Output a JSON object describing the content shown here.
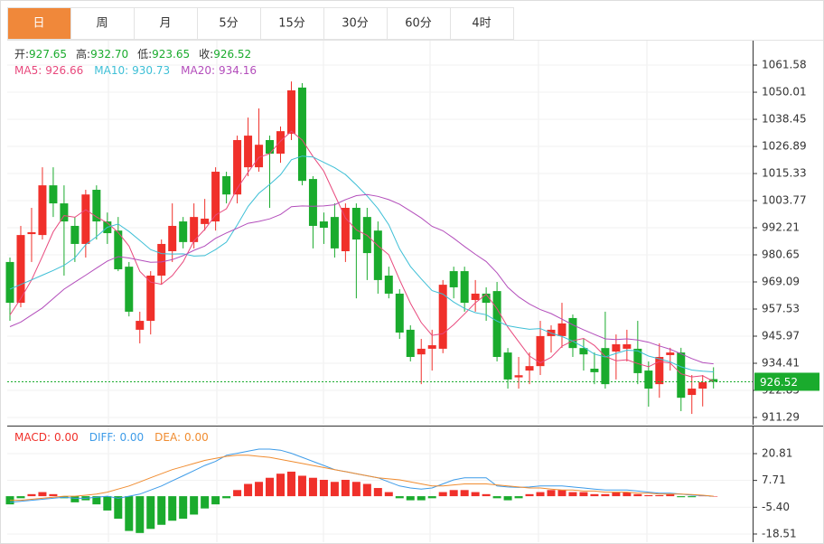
{
  "tabs": [
    "日",
    "周",
    "月",
    "5分",
    "15分",
    "30分",
    "60分",
    "4时"
  ],
  "active_tab": 0,
  "chart_data": [
    {
      "type": "candlestick",
      "info": [
        {
          "label": "开:",
          "value": "927.65"
        },
        {
          "label": "高:",
          "value": "932.70"
        },
        {
          "label": "低:",
          "value": "923.65"
        },
        {
          "label": "收:",
          "value": "926.52"
        }
      ],
      "up_color": "#f0302a",
      "down_color": "#1aab2d",
      "open": [
        977.6,
        960.2,
        989.5,
        989.1,
        1010.3,
        1002.6,
        993,
        985.3,
        1008.4,
        994.9,
        991,
        975.6,
        948.7,
        952.5,
        971.8,
        982.2,
        994.9,
        986.1,
        993.8,
        994.9,
        1014.2,
        1006.4,
        1018,
        1018,
        1029.6,
        1023.8,
        1032.3,
        1052,
        1013,
        994.9,
        996.8,
        982.2,
        1000.7,
        996.8,
        991,
        971.8,
        964.1,
        948.7,
        938.2,
        940.6,
        940.6,
        973.7,
        973.7,
        961.4,
        964.1,
        965.2,
        939,
        928.4,
        931.3,
        933.2,
        946,
        946,
        953.7,
        940.9,
        932.1,
        940.9,
        939.4,
        940.6,
        940.6,
        931.3,
        925.5,
        937.9,
        939,
        920.9,
        923.6,
        927.65
      ],
      "high": [
        979.5,
        993,
        1000.7,
        1018,
        1018,
        1010.3,
        996.8,
        1008.4,
        1010.3,
        998.7,
        996.8,
        977.6,
        956.4,
        973.7,
        987.2,
        1002.6,
        996.8,
        1002.6,
        1004.5,
        1018,
        1016.1,
        1031.5,
        1039.2,
        1043.1,
        1031.5,
        1035.4,
        1054.6,
        1053.9,
        1014.2,
        998.7,
        1002.6,
        1002.6,
        1002.6,
        1000.7,
        994.9,
        975.6,
        966,
        950.6,
        944.8,
        948.7,
        969.9,
        975.6,
        975.6,
        969.9,
        966.8,
        969.1,
        940.9,
        937.1,
        939,
        952.5,
        950.6,
        960.2,
        955.2,
        944.8,
        939,
        956.4,
        946.7,
        948.7,
        952.5,
        935.2,
        942.9,
        941,
        941,
        929.4,
        929.4,
        932.7
      ],
      "low": [
        952.5,
        958.3,
        977.6,
        987.2,
        996.8,
        971.8,
        977.6,
        979.5,
        987.2,
        985.3,
        973.7,
        954.4,
        942.9,
        946.7,
        967.9,
        977.6,
        983.4,
        983.4,
        991,
        991,
        1002.6,
        1002.6,
        1014.2,
        1016.1,
        1000.7,
        1019.9,
        1029.6,
        1010.3,
        983.4,
        985.3,
        979.5,
        977.6,
        962.1,
        969.9,
        964.1,
        962.1,
        944.8,
        935.2,
        925.5,
        931.3,
        938.7,
        962.1,
        956.4,
        956.4,
        952.5,
        935.2,
        923.6,
        923.6,
        925.5,
        929.4,
        939,
        941,
        937.1,
        931.3,
        925.5,
        923.6,
        927.5,
        935.2,
        925.5,
        915.9,
        919.7,
        931.3,
        914,
        912.8,
        916,
        923.65
      ],
      "close": [
        960.2,
        989.1,
        990.3,
        1010.3,
        1002.6,
        994.9,
        985.3,
        1006.4,
        994.9,
        989.9,
        974.5,
        956.4,
        952.5,
        971.8,
        985.3,
        993,
        986.1,
        996.8,
        996.1,
        1016.1,
        1006.4,
        1029.6,
        1031.5,
        1027.6,
        1023.8,
        1033.4,
        1050.8,
        1012.2,
        993,
        992.2,
        983.4,
        1000.7,
        987.2,
        981.4,
        969.9,
        964.1,
        947.5,
        937.1,
        940.6,
        942.1,
        967.9,
        966.8,
        960.2,
        964.1,
        960.2,
        937.1,
        927.5,
        929.3,
        933.2,
        946,
        948.7,
        951.4,
        940.9,
        938.2,
        930.6,
        925.5,
        942.5,
        942.5,
        930.2,
        923.6,
        937.1,
        939,
        919.7,
        923.6,
        926.3,
        926.52
      ],
      "series": [
        {
          "name": "MA5:",
          "last_label": "926.66",
          "color": "#e8497d",
          "values": [
            955,
            962,
            970,
            980,
            990.5,
            997.4,
            996.7,
            999.9,
            996.8,
            994.3,
            990.2,
            984.4,
            973.6,
            969,
            968.1,
            971.8,
            977.7,
            986.6,
            991.5,
            997.6,
            1000.3,
            1009,
            1015.9,
            1022.2,
            1023.8,
            1029.2,
            1033.4,
            1029.6,
            1022.6,
            1016.3,
            1006.3,
            996.3,
            991.3,
            989,
            984.5,
            980.7,
            970,
            960,
            951.8,
            946.3,
            947,
            950.9,
            955.5,
            960.2,
            963.8,
            957.7,
            949.8,
            943.6,
            937.5,
            934.6,
            936.9,
            941.7,
            944,
            945,
            942,
            937.3,
            935.5,
            935.9,
            934.3,
            932.9,
            935.2,
            934.5,
            929.9,
            928.6,
            929.1,
            926.66
          ]
        },
        {
          "name": "MA10:",
          "last_label": "930.73",
          "color": "#3dbfd6",
          "values": [
            966,
            968,
            970,
            972,
            974,
            976.2,
            979.4,
            985,
            988.4,
            992.4,
            993.8,
            990.6,
            986.8,
            982.9,
            981.2,
            981,
            981.1,
            980.1,
            980.3,
            982.9,
            986.1,
            993.4,
            1001.3,
            1006.9,
            1010.7,
            1014.8,
            1021.2,
            1022.8,
            1022.4,
            1020.1,
            1017.8,
            1014.9,
            1010.5,
            1005.8,
            1000.4,
            993.5,
            983.2,
            975.7,
            970.4,
            965.4,
            963.9,
            960.5,
            957.8,
            956,
            955.1,
            952.4,
            950.4,
            949.6,
            948.9,
            949.2,
            947.3,
            945.8,
            943.8,
            941.3,
            938.3,
            937.1,
            938.6,
            940,
            939.7,
            937.5,
            936.3,
            935,
            932.9,
            931.5,
            931,
            930.73
          ]
        },
        {
          "name": "MA20:",
          "last_label": "934.16",
          "color": "#b34dbb",
          "values": [
            950,
            952,
            955,
            958,
            962,
            966,
            969,
            972,
            975,
            978,
            979.9,
            979.3,
            978.4,
            977.5,
            977.6,
            978.6,
            980.3,
            982.6,
            984.4,
            987.7,
            990,
            992,
            994.1,
            994.9,
            996,
            997.9,
            1001.2,
            1001.5,
            1001.4,
            1001.5,
            1002,
            1004.2,
            1005.9,
            1006.4,
            1005.6,
            1004.2,
            1002.2,
            999.3,
            996.4,
            992.8,
            990.9,
            987.7,
            984.2,
            980.9,
            977.8,
            973,
            966.8,
            962.7,
            959.7,
            957.3,
            955.6,
            953.2,
            950.8,
            948.7,
            946.7,
            944.8,
            944.5,
            944.8,
            944.3,
            943.4,
            941.8,
            940.4,
            938.4,
            936.4,
            934.7,
            934.16
          ]
        }
      ],
      "ylim": [
        908.2,
        1072.0
      ],
      "yticks": [
        1061.58,
        1050.01,
        1038.45,
        1026.89,
        1015.33,
        1003.77,
        992.21,
        980.65,
        969.09,
        957.53,
        945.97,
        934.41,
        922.85,
        911.29
      ],
      "grid": true
    },
    {
      "type": "macd",
      "histogram": {
        "name": "MACD:",
        "last_label": "0.00",
        "color": "#f0302a",
        "values": [
          -4,
          -1,
          1,
          2,
          1,
          -1,
          -3,
          -2,
          -4,
          -7,
          -11,
          -17,
          -18,
          -16,
          -14,
          -12,
          -11,
          -9,
          -6,
          -4,
          -1,
          3,
          6,
          7,
          9,
          11,
          12,
          10,
          9,
          8,
          7,
          8,
          7,
          6,
          4,
          2,
          -1,
          -2,
          -2,
          -1,
          2,
          3,
          3,
          2,
          1,
          -1,
          -2,
          -1,
          1,
          2,
          3,
          3,
          2,
          2,
          1,
          1,
          2,
          2,
          1,
          0.5,
          0.5,
          1,
          -0.5,
          -0.5,
          0.2,
          0
        ]
      },
      "negative_color": "#1aab2d",
      "series": [
        {
          "name": "DIFF:",
          "last_label": "0.00",
          "color": "#3d9be8",
          "values": [
            -3,
            -2.5,
            -2,
            -1.5,
            -1,
            -0.5,
            -1,
            -1,
            -0.5,
            0,
            -1,
            0,
            1,
            3,
            5,
            7.5,
            10,
            12.5,
            15,
            17,
            20,
            21,
            22,
            23,
            23,
            22.5,
            21,
            19,
            17,
            15,
            13,
            12,
            11,
            10,
            9,
            7,
            5,
            4,
            3.5,
            4,
            6,
            8,
            9,
            9,
            9,
            5,
            4.5,
            4.3,
            4.5,
            5,
            5,
            5,
            4.5,
            4,
            3.5,
            3,
            3,
            3,
            2.5,
            2,
            1.5,
            1.5,
            1,
            0.5,
            0.3,
            0
          ]
        },
        {
          "name": "DEA:",
          "last_label": "0.00",
          "color": "#f08c30",
          "values": [
            -2,
            -2,
            -1.5,
            -1,
            -0.5,
            0,
            0,
            0.5,
            1,
            2,
            3.5,
            5,
            7,
            9,
            11,
            13,
            14.5,
            16,
            17.5,
            18.5,
            19.5,
            20,
            20,
            19.5,
            19,
            18,
            17,
            16,
            15,
            14,
            13,
            12,
            11,
            10,
            9,
            8.5,
            8,
            7,
            6,
            5,
            5,
            5.5,
            6,
            6,
            6,
            5.5,
            5,
            4.5,
            4,
            4,
            3.5,
            3,
            3,
            2.5,
            2.5,
            2,
            2,
            2,
            1.5,
            1.5,
            1,
            1,
            1,
            0.8,
            0.5,
            0
          ]
        }
      ],
      "ylim": [
        -22.5,
        34.07
      ],
      "yticks": [
        20.81,
        7.71,
        {
          "value": -5.4,
          "label": "-5.40"
        },
        -18.51
      ],
      "grid": true
    }
  ]
}
